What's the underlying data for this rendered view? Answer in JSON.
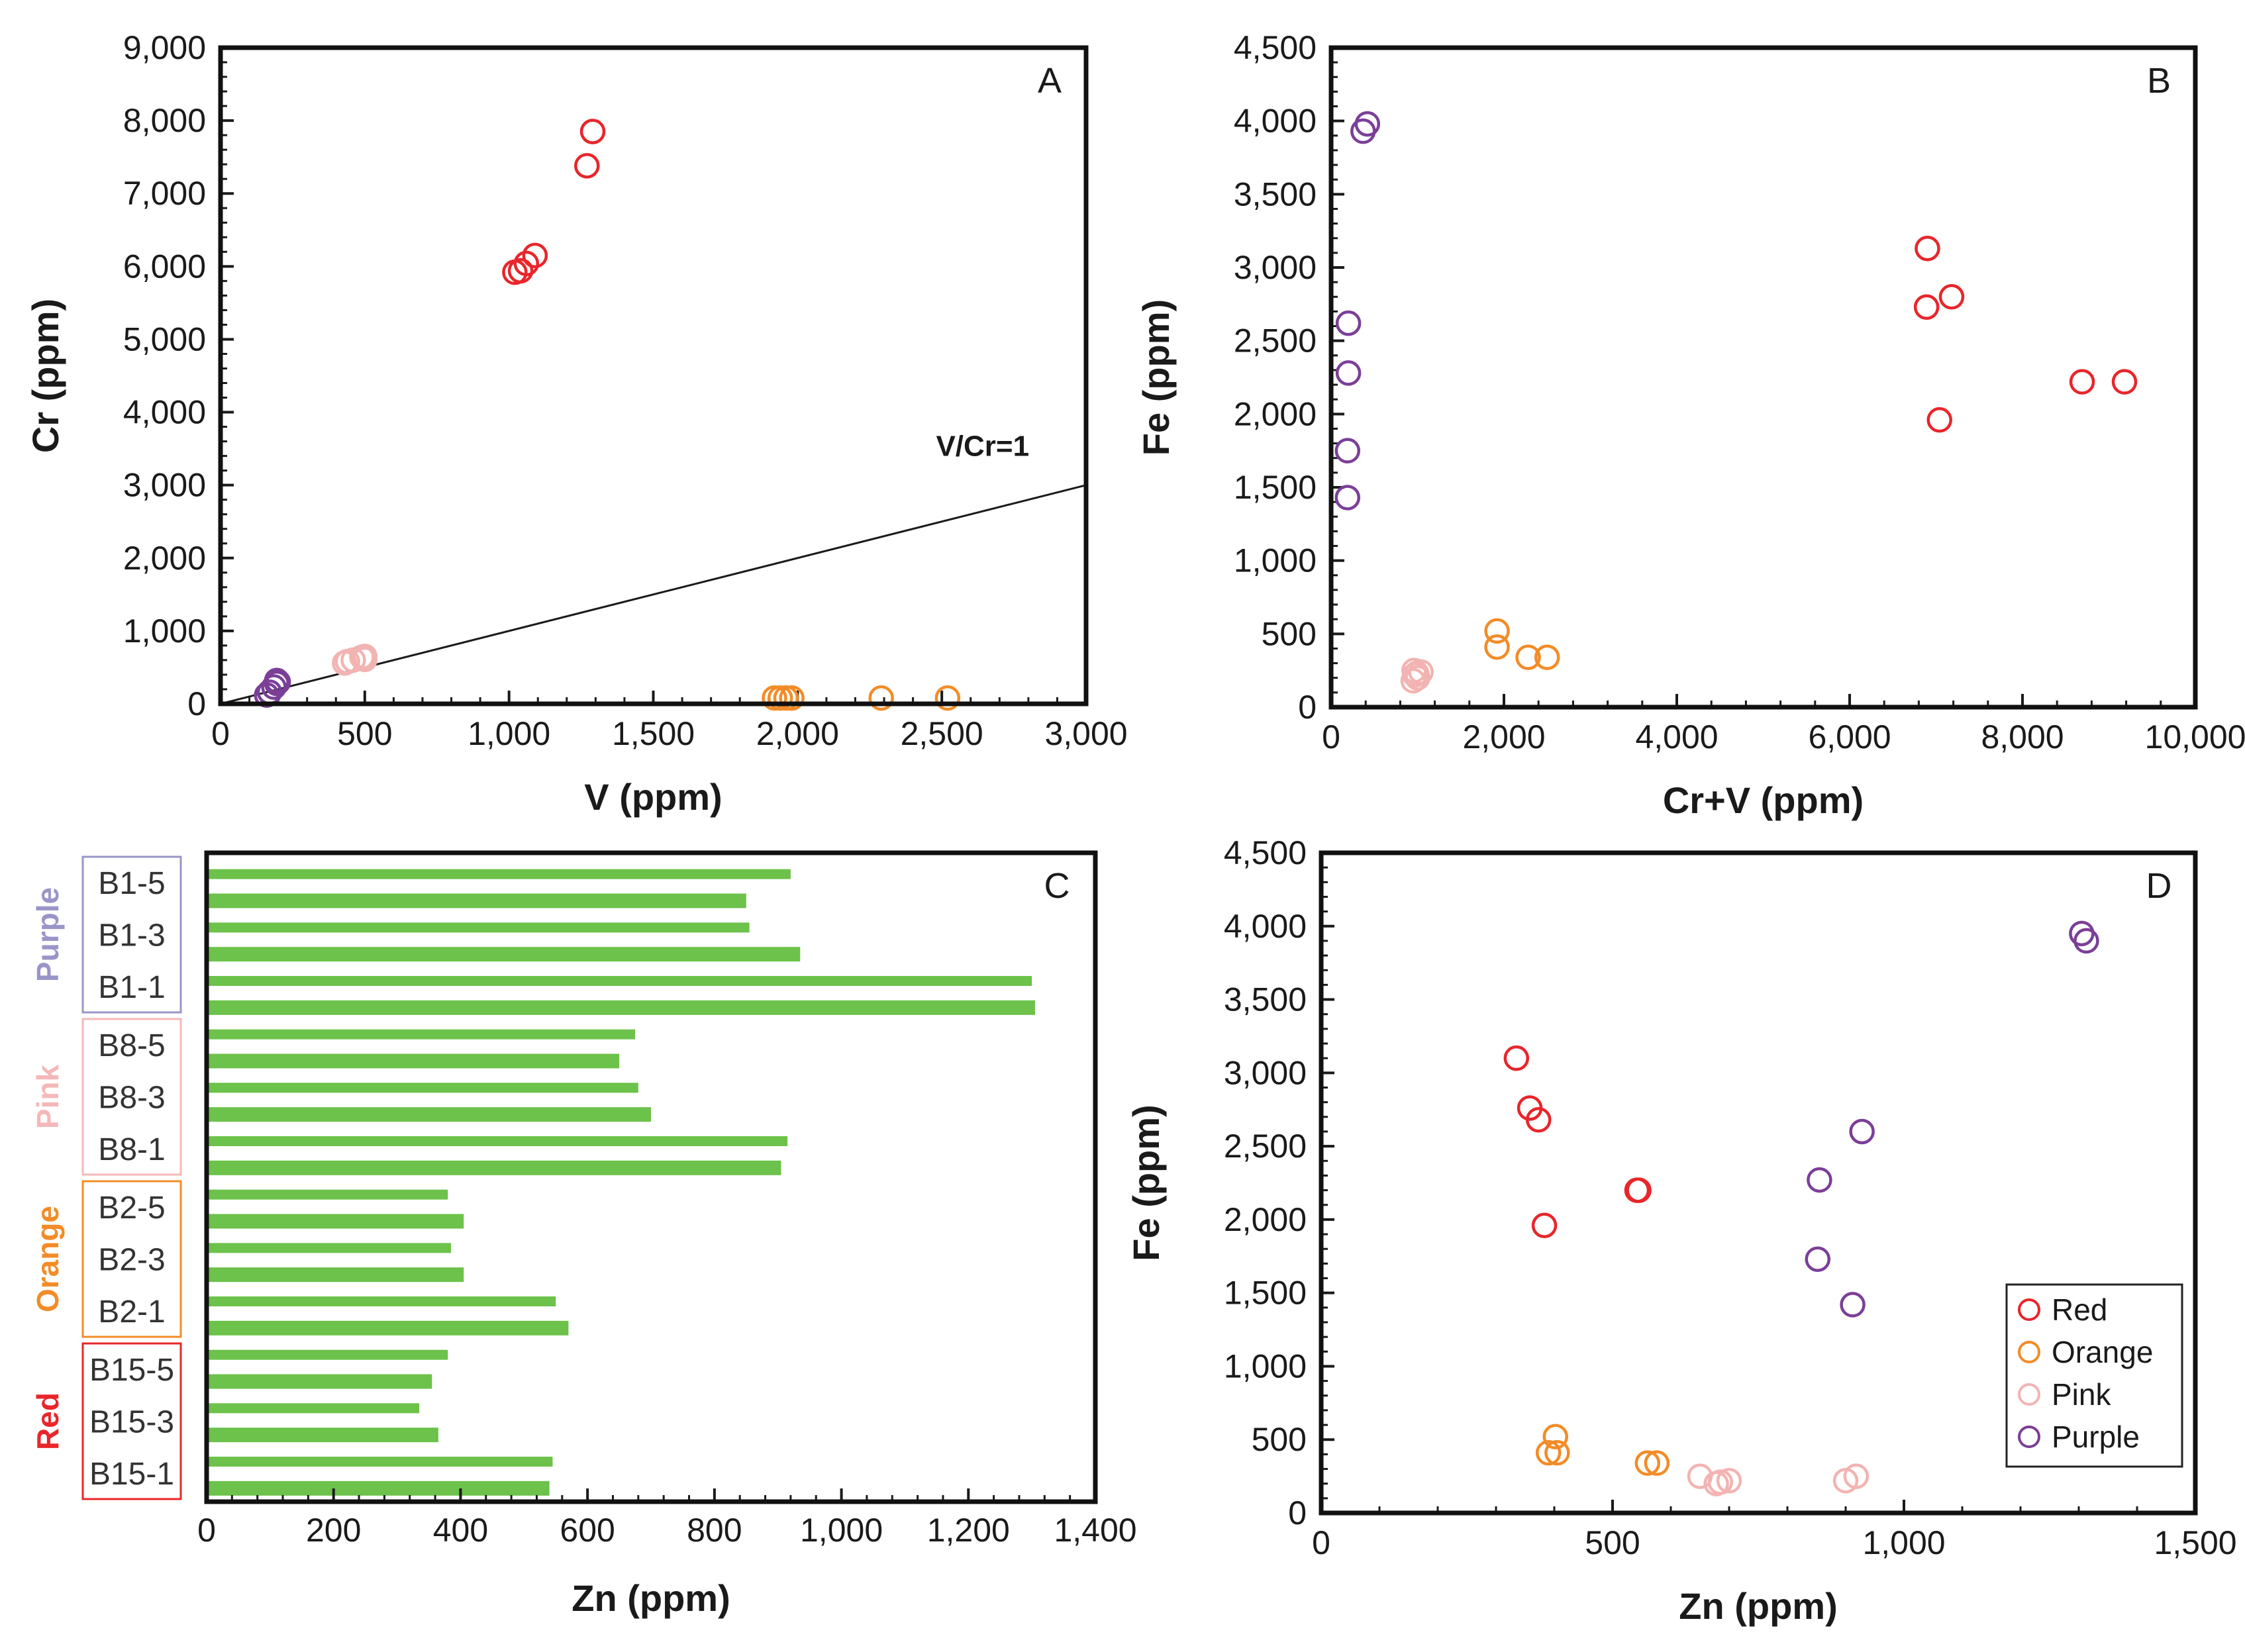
{
  "colors": {
    "Red": "#e8262b",
    "Orange": "#f28c28",
    "Pink": "#f2b4b2",
    "Purple": "#7b3f98",
    "bar": "#6cc24a",
    "Purple_label": "#9a95c8",
    "Pink_label": "#f5b8b8",
    "Orange_label": "#f28c28",
    "Red_label": "#e8262b"
  },
  "chart_data": [
    {
      "panel": "A",
      "type": "scatter",
      "xlabel": "V (ppm)",
      "ylabel": "Cr (ppm)",
      "xlim": [
        0,
        3000
      ],
      "ylim": [
        0,
        9000
      ],
      "xticks": [
        "0",
        "500",
        "1,000",
        "1,500",
        "2,000",
        "2,500",
        "3,000"
      ],
      "yticks": [
        "0",
        "1,000",
        "2,000",
        "3,000",
        "4,000",
        "5,000",
        "6,000",
        "7,000",
        "8,000",
        "9,000"
      ],
      "reference_line": {
        "label": "V/Cr=1",
        "points": [
          [
            0,
            0
          ],
          [
            3000,
            3000
          ]
        ]
      },
      "series": [
        {
          "name": "Red",
          "points": [
            [
              1290,
              7850
            ],
            [
              1270,
              7380
            ],
            [
              1090,
              6150
            ],
            [
              1060,
              6040
            ],
            [
              1040,
              5940
            ],
            [
              1020,
              5920
            ]
          ]
        },
        {
          "name": "Orange",
          "points": [
            [
              1920,
              80
            ],
            [
              1940,
              80
            ],
            [
              1960,
              80
            ],
            [
              1980,
              80
            ],
            [
              2290,
              80
            ],
            [
              2520,
              80
            ]
          ]
        },
        {
          "name": "Pink",
          "points": [
            [
              430,
              560
            ],
            [
              440,
              580
            ],
            [
              460,
              600
            ],
            [
              490,
              640
            ],
            [
              500,
              650
            ],
            [
              500,
              610
            ]
          ]
        },
        {
          "name": "Purple",
          "points": [
            [
              160,
              120
            ],
            [
              170,
              160
            ],
            [
              185,
              230
            ],
            [
              195,
              280
            ],
            [
              200,
              300
            ],
            [
              195,
              320
            ]
          ]
        }
      ]
    },
    {
      "panel": "B",
      "type": "scatter",
      "xlabel": "Cr+V (ppm)",
      "ylabel": "Fe (ppm)",
      "xlim": [
        0,
        10000
      ],
      "ylim": [
        0,
        4500
      ],
      "xticks": [
        "0",
        "2,000",
        "4,000",
        "6,000",
        "8,000",
        "10,000"
      ],
      "yticks": [
        "0",
        "500",
        "1,000",
        "1,500",
        "2,000",
        "2,500",
        "3,000",
        "3,500",
        "4,000",
        "4,500"
      ],
      "series": [
        {
          "name": "Red",
          "points": [
            [
              6900,
              3130
            ],
            [
              6890,
              2730
            ],
            [
              7180,
              2800
            ],
            [
              7040,
              1960
            ],
            [
              8690,
              2220
            ],
            [
              9180,
              2220
            ]
          ]
        },
        {
          "name": "Orange",
          "points": [
            [
              1920,
              520
            ],
            [
              1920,
              410
            ],
            [
              2280,
              340
            ],
            [
              2500,
              340
            ]
          ]
        },
        {
          "name": "Pink",
          "points": [
            [
              950,
              180
            ],
            [
              990,
              230
            ],
            [
              1040,
              240
            ],
            [
              970,
              220
            ],
            [
              1000,
              200
            ],
            [
              960,
              250
            ]
          ]
        },
        {
          "name": "Purple",
          "points": [
            [
              370,
              3930
            ],
            [
              420,
              3980
            ],
            [
              200,
              2620
            ],
            [
              200,
              2280
            ],
            [
              190,
              1750
            ],
            [
              190,
              1430
            ]
          ]
        }
      ]
    },
    {
      "panel": "C",
      "type": "bar",
      "orientation": "horizontal",
      "xlabel": "Zn (ppm)",
      "xlim": [
        0,
        1400
      ],
      "xticks": [
        "0",
        "200",
        "400",
        "600",
        "800",
        "1,000",
        "1,200",
        "1,400"
      ],
      "groups": [
        {
          "name": "Purple",
          "labels": [
            "B1-5",
            "B1-3",
            "B1-1"
          ]
        },
        {
          "name": "Pink",
          "labels": [
            "B8-5",
            "B8-3",
            "B8-1"
          ]
        },
        {
          "name": "Orange",
          "labels": [
            "B2-5",
            "B2-3",
            "B2-1"
          ]
        },
        {
          "name": "Red",
          "labels": [
            "B15-5",
            "B15-3",
            "B15-1"
          ]
        }
      ],
      "values": [
        920,
        850,
        855,
        935,
        1300,
        1305,
        675,
        650,
        680,
        700,
        915,
        905,
        380,
        405,
        385,
        405,
        550,
        570,
        380,
        355,
        335,
        365,
        545,
        540
      ]
    },
    {
      "panel": "D",
      "type": "scatter",
      "xlabel": "Zn (ppm)",
      "ylabel": "Fe (ppm)",
      "xlim": [
        0,
        1500
      ],
      "ylim": [
        0,
        4500
      ],
      "xticks": [
        "0",
        "500",
        "1,000",
        "1,500"
      ],
      "yticks": [
        "0",
        "500",
        "1,000",
        "1,500",
        "2,000",
        "2,500",
        "3,000",
        "3,500",
        "4,000",
        "4,500"
      ],
      "legend": {
        "position": "bottom-right",
        "entries": [
          "Red",
          "Orange",
          "Pink",
          "Purple"
        ]
      },
      "series": [
        {
          "name": "Red",
          "points": [
            [
              335,
              3100
            ],
            [
              358,
              2760
            ],
            [
              373,
              2680
            ],
            [
              383,
              1960
            ],
            [
              542,
              2200
            ],
            [
              545,
              2200
            ]
          ]
        },
        {
          "name": "Orange",
          "points": [
            [
              402,
              520
            ],
            [
              390,
              410
            ],
            [
              405,
              410
            ],
            [
              560,
              340
            ],
            [
              576,
              340
            ]
          ]
        },
        {
          "name": "Pink",
          "points": [
            [
              650,
              250
            ],
            [
              678,
              200
            ],
            [
              685,
              210
            ],
            [
              700,
              220
            ],
            [
              900,
              220
            ],
            [
              918,
              250
            ]
          ]
        },
        {
          "name": "Purple",
          "points": [
            [
              1305,
              3950
            ],
            [
              1313,
              3900
            ],
            [
              928,
              2600
            ],
            [
              855,
              2270
            ],
            [
              852,
              1730
            ],
            [
              912,
              1420
            ]
          ]
        }
      ]
    }
  ]
}
